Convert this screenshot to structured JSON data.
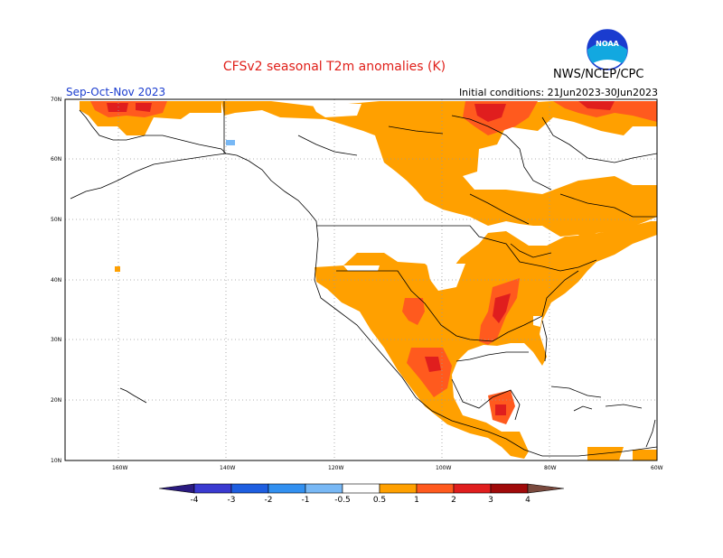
{
  "header": {
    "title": "CFSv2 seasonal T2m anomalies (K)",
    "agency": "NWS/NCEP/CPC",
    "season": "Sep-Oct-Nov 2023",
    "initial_conditions": "Initial conditions: 21Jun2023-30Jun2023"
  },
  "logo": {
    "text": "NOAA"
  },
  "axes": {
    "lat_labels": [
      "70N",
      "60N",
      "50N",
      "40N",
      "30N",
      "20N",
      "10N"
    ],
    "lon_labels": [
      "160W",
      "140W",
      "120W",
      "100W",
      "80W",
      "60W"
    ]
  },
  "colorbar": {
    "labels": [
      "-4",
      "-3",
      "-2",
      "-1",
      "-0.5",
      "0.5",
      "1",
      "2",
      "3",
      "4"
    ],
    "colors": {
      "below_-4": "#2a1a80",
      "-4_-3": "#3a3ad0",
      "-3_-2": "#1e5ee0",
      "-2_-1": "#3290f0",
      "-1_-0.5": "#78b8f5",
      "neutral": "#ffffff",
      "0.5_1": "#ffa000",
      "1_2": "#ff5a1e",
      "2_3": "#e01e1e",
      "3_4": "#a00a0a",
      "4_5": "#c8a096",
      "above_5": "#7a4a3e"
    }
  }
}
